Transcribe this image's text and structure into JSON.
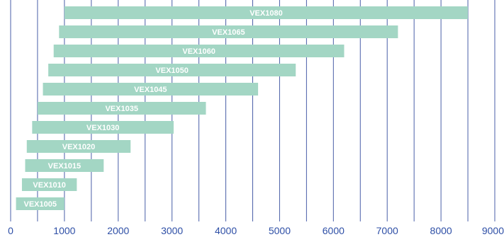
{
  "chart_data": {
    "type": "bar",
    "orientation": "horizontal",
    "title": "",
    "xlabel": "",
    "ylabel": "",
    "xlim": [
      0,
      9000
    ],
    "x_ticks": [
      0,
      1000,
      2000,
      3000,
      4000,
      5000,
      6000,
      7000,
      8000,
      9000
    ],
    "x_tick_labels": [
      "0",
      "1000",
      "2000",
      "3000",
      "4000",
      "5000",
      "6000",
      "7000",
      "8000",
      "9000"
    ],
    "grid": true,
    "gridlines": [
      0,
      500,
      1000,
      1500,
      2000,
      2500,
      3000,
      3500,
      4000,
      4500,
      5000,
      5500,
      6000,
      6500,
      7000,
      7500,
      8000,
      8500,
      9000
    ],
    "bar_color": "#a3d6c4",
    "gridline_color": "#4a5fa8",
    "tick_label_color": "#2e4fa6",
    "bars": [
      {
        "label": "VEX1080",
        "start": 1000,
        "end": 8500
      },
      {
        "label": "VEX1065",
        "start": 900,
        "end": 7200
      },
      {
        "label": "VEX1060",
        "start": 800,
        "end": 6200
      },
      {
        "label": "VEX1050",
        "start": 700,
        "end": 5300
      },
      {
        "label": "VEX1045",
        "start": 600,
        "end": 4600
      },
      {
        "label": "VEX1035",
        "start": 500,
        "end": 3630
      },
      {
        "label": "VEX1030",
        "start": 400,
        "end": 3030
      },
      {
        "label": "VEX1020",
        "start": 300,
        "end": 2230
      },
      {
        "label": "VEX1015",
        "start": 270,
        "end": 1730
      },
      {
        "label": "VEX1010",
        "start": 210,
        "end": 1230
      },
      {
        "label": "VEX1005",
        "start": 100,
        "end": 1000
      }
    ]
  }
}
